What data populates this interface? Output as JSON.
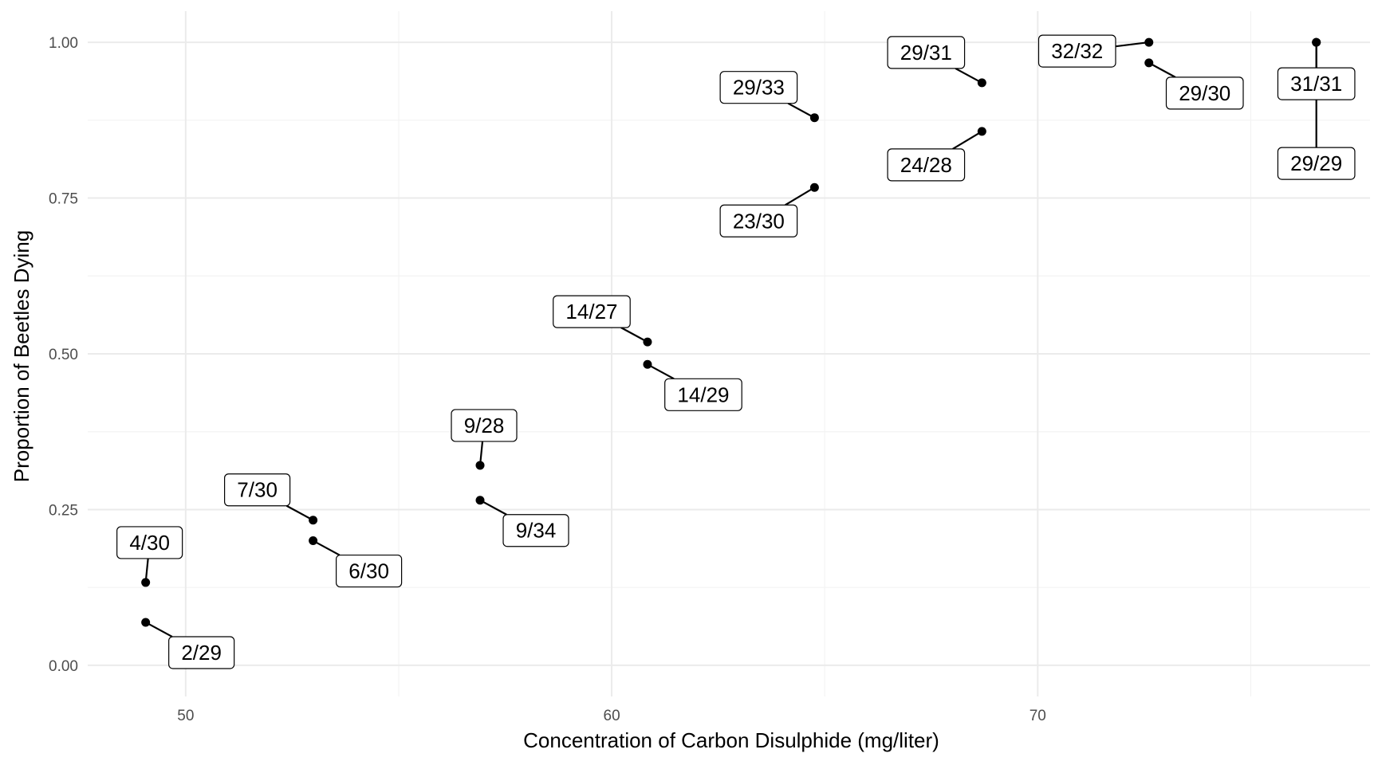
{
  "chart_data": {
    "type": "scatter",
    "xlabel": "Concentration of Carbon Disulphide (mg/liter)",
    "ylabel": "Proportion of Beetles Dying",
    "xlim": [
      47.7,
      77.8
    ],
    "ylim": [
      -0.05,
      1.05
    ],
    "x_ticks": [
      50,
      60,
      70
    ],
    "x_tick_labels": [
      "50",
      "60",
      "70"
    ],
    "x_minor_ticks": [
      55,
      65,
      75
    ],
    "y_ticks": [
      0,
      0.25,
      0.5,
      0.75,
      1
    ],
    "y_tick_labels": [
      "0.00",
      "0.25",
      "0.50",
      "0.75",
      "1.00"
    ],
    "y_minor_ticks": [
      0.125,
      0.375,
      0.625,
      0.875
    ],
    "grid": true,
    "legend": "none",
    "points": [
      {
        "x": 49.06,
        "y": 0.133,
        "label": "4/30",
        "label_side": "above"
      },
      {
        "x": 49.06,
        "y": 0.069,
        "label": "2/29",
        "label_side": "below-right"
      },
      {
        "x": 52.99,
        "y": 0.233,
        "label": "7/30",
        "label_side": "above-left"
      },
      {
        "x": 52.99,
        "y": 0.2,
        "label": "6/30",
        "label_side": "below-right"
      },
      {
        "x": 56.91,
        "y": 0.321,
        "label": "9/28",
        "label_side": "above"
      },
      {
        "x": 56.91,
        "y": 0.265,
        "label": "9/34",
        "label_side": "below-right"
      },
      {
        "x": 60.84,
        "y": 0.519,
        "label": "14/27",
        "label_side": "above-left"
      },
      {
        "x": 60.84,
        "y": 0.483,
        "label": "14/29",
        "label_side": "below-right"
      },
      {
        "x": 64.76,
        "y": 0.879,
        "label": "29/33",
        "label_side": "above-left"
      },
      {
        "x": 64.76,
        "y": 0.767,
        "label": "23/30",
        "label_side": "below-left"
      },
      {
        "x": 68.69,
        "y": 0.935,
        "label": "29/31",
        "label_side": "above-left"
      },
      {
        "x": 68.69,
        "y": 0.857,
        "label": "24/28",
        "label_side": "below-left"
      },
      {
        "x": 72.61,
        "y": 1.0,
        "label": "32/32",
        "label_side": "left"
      },
      {
        "x": 72.61,
        "y": 0.967,
        "label": "29/30",
        "label_side": "below-right"
      },
      {
        "x": 76.54,
        "y": 1.0,
        "label": "31/31",
        "label_side": "below"
      },
      {
        "x": 76.54,
        "y": 1.0,
        "label": "29/29",
        "label_side": "below-far"
      }
    ]
  }
}
